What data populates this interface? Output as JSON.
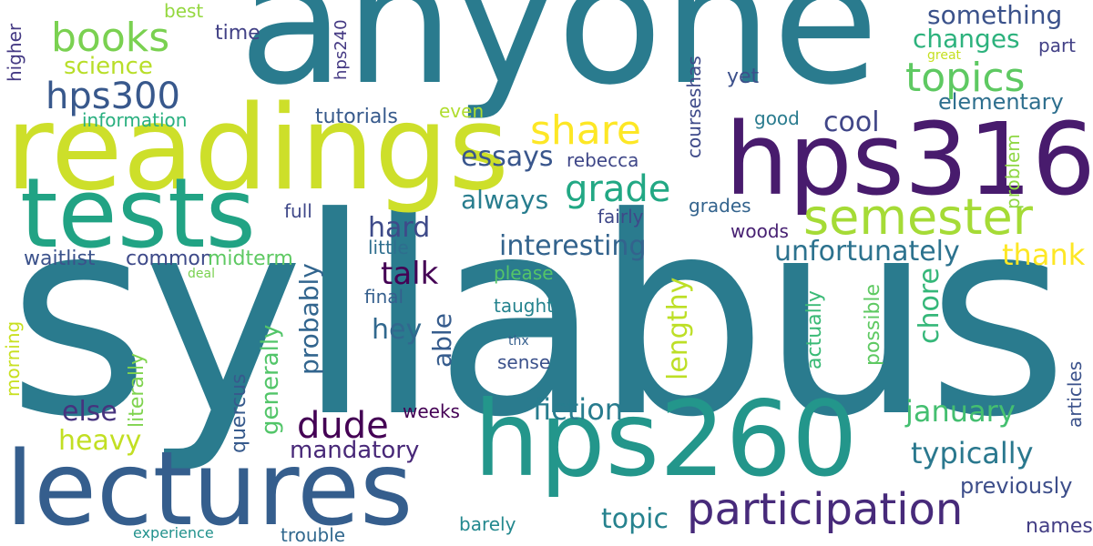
{
  "words": {
    "syllabus": {
      "text": "syllabus",
      "color": "#2a7b8e"
    },
    "anyone": {
      "text": "anyone",
      "color": "#2a7b8e"
    },
    "readings": {
      "text": "readings",
      "color": "#cddf2a"
    },
    "tests": {
      "text": "tests",
      "color": "#21a384"
    },
    "hps316": {
      "text": "hps316",
      "color": "#481b6d"
    },
    "hps260": {
      "text": "hps260",
      "color": "#23968b"
    },
    "lectures": {
      "text": "lectures",
      "color": "#355e8d"
    },
    "participation": {
      "text": "participation",
      "color": "#472a7a"
    },
    "semester": {
      "text": "semester",
      "color": "#a5db36"
    },
    "books": {
      "text": "books",
      "color": "#7ad151"
    },
    "topics": {
      "text": "topics",
      "color": "#5ec962"
    },
    "share": {
      "text": "share",
      "color": "#fde725"
    },
    "hps300": {
      "text": "hps300",
      "color": "#38588c"
    },
    "grade": {
      "text": "grade",
      "color": "#22a884"
    },
    "dude": {
      "text": "dude",
      "color": "#440154"
    },
    "interesting": {
      "text": "interesting",
      "color": "#33638d"
    },
    "unfortunately": {
      "text": "unfortunately",
      "color": "#2c728e"
    },
    "typically": {
      "text": "typically",
      "color": "#2a788e"
    },
    "fiction": {
      "text": "fiction",
      "color": "#287c8e"
    },
    "january": {
      "text": "january",
      "color": "#44bf70"
    },
    "something": {
      "text": "something",
      "color": "#3b528b"
    },
    "changes": {
      "text": "changes",
      "color": "#2db27d"
    },
    "science": {
      "text": "science",
      "color": "#b8de29"
    },
    "essays": {
      "text": "essays",
      "color": "#39568c"
    },
    "always": {
      "text": "always",
      "color": "#287d8e"
    },
    "talk": {
      "text": "talk",
      "color": "#440154"
    },
    "hard": {
      "text": "hard",
      "color": "#3e4a89"
    },
    "hey": {
      "text": "hey",
      "color": "#31688e"
    },
    "cool": {
      "text": "cool",
      "color": "#404688"
    },
    "thank": {
      "text": "thank",
      "color": "#fde725"
    },
    "heavy": {
      "text": "heavy",
      "color": "#c2df23"
    },
    "else": {
      "text": "else",
      "color": "#46337e"
    },
    "mandatory": {
      "text": "mandatory",
      "color": "#482878"
    },
    "topic": {
      "text": "topic",
      "color": "#26828e"
    },
    "lengthy": {
      "text": "lengthy",
      "color": "#bddf26"
    },
    "chore": {
      "text": "chore",
      "color": "#35b779"
    },
    "able": {
      "text": "able",
      "color": "#365c8d"
    },
    "probably": {
      "text": "probably",
      "color": "#32658e"
    },
    "generally": {
      "text": "generally",
      "color": "#52c569"
    },
    "elementary": {
      "text": "elementary",
      "color": "#2e6f8e"
    },
    "previously": {
      "text": "previously",
      "color": "#3d4e8a"
    },
    "names": {
      "text": "names",
      "color": "#433e85"
    },
    "waitlist": {
      "text": "waitlist",
      "color": "#3b528b"
    },
    "common": {
      "text": "common",
      "color": "#3e4a89"
    },
    "midterm": {
      "text": "midterm",
      "color": "#5ec962"
    },
    "information": {
      "text": "information",
      "color": "#29af7f"
    },
    "tutorials": {
      "text": "tutorials",
      "color": "#375a8c"
    },
    "rebecca": {
      "text": "rebecca",
      "color": "#3f4788"
    },
    "good": {
      "text": "good",
      "color": "#297b8e"
    },
    "part": {
      "text": "part",
      "color": "#424086"
    },
    "yet": {
      "text": "yet",
      "color": "#3c508b"
    },
    "best": {
      "text": "best",
      "color": "#95d840"
    },
    "time": {
      "text": "time",
      "color": "#424186"
    },
    "great": {
      "text": "great",
      "color": "#c5e021"
    },
    "even": {
      "text": "even",
      "color": "#b0dd2f"
    },
    "full": {
      "text": "full",
      "color": "#3f4889"
    },
    "fairly": {
      "text": "fairly",
      "color": "#3f4889"
    },
    "grades": {
      "text": "grades",
      "color": "#33638d"
    },
    "woods": {
      "text": "woods",
      "color": "#482173"
    },
    "little": {
      "text": "little",
      "color": "#2e6e8e"
    },
    "final": {
      "text": "final",
      "color": "#355f8d"
    },
    "please": {
      "text": "please",
      "color": "#54c568"
    },
    "taught": {
      "text": "taught",
      "color": "#25838e"
    },
    "sense": {
      "text": "sense",
      "color": "#3b518b"
    },
    "thx": {
      "text": "thx",
      "color": "#355f8d"
    },
    "weeks": {
      "text": "weeks",
      "color": "#440154"
    },
    "deal": {
      "text": "deal",
      "color": "#7ad151"
    },
    "experience": {
      "text": "experience",
      "color": "#21918c"
    },
    "trouble": {
      "text": "trouble",
      "color": "#31688e"
    },
    "barely": {
      "text": "barely",
      "color": "#23888e"
    },
    "higher": {
      "text": "higher",
      "color": "#443983"
    },
    "hps240": {
      "text": "hps240",
      "color": "#443983"
    },
    "courseshas": {
      "text": "courseshas",
      "color": "#3e4a89"
    },
    "problem": {
      "text": "problem",
      "color": "#8fd744"
    },
    "actually": {
      "text": "actually",
      "color": "#3aba76"
    },
    "possible": {
      "text": "possible",
      "color": "#5ec962"
    },
    "articles": {
      "text": "articles",
      "color": "#3b528b"
    },
    "quercus": {
      "text": "quercus",
      "color": "#375a8c"
    },
    "literally": {
      "text": "literally",
      "color": "#7fd34e"
    },
    "morning": {
      "text": "morning",
      "color": "#c8e020"
    }
  }
}
